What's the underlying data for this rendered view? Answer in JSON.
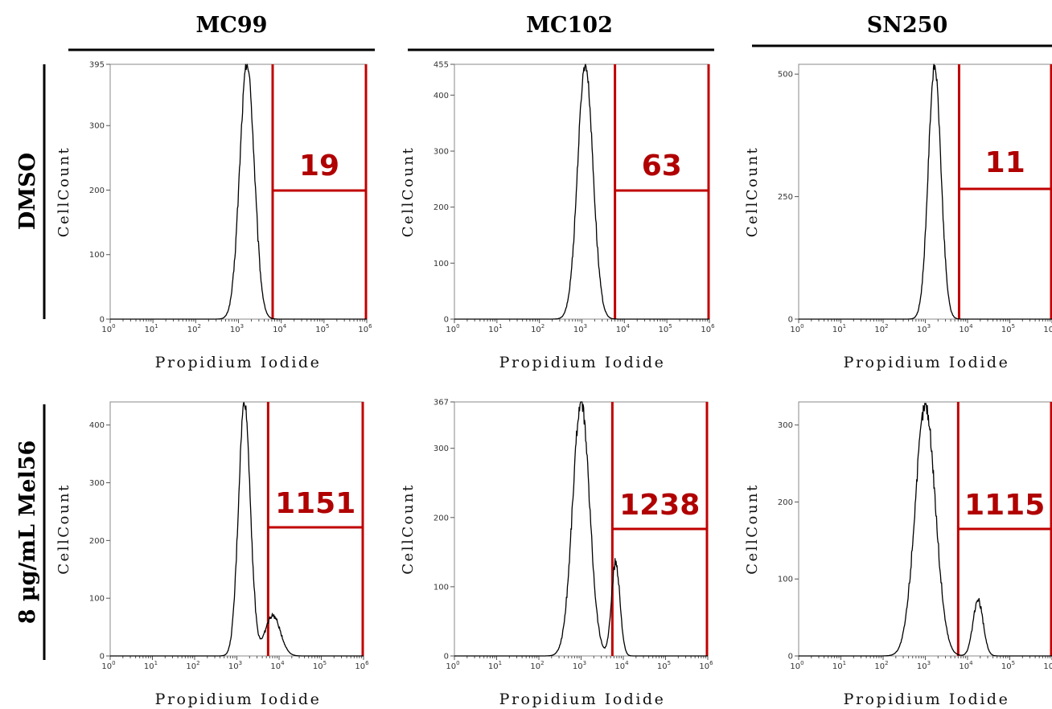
{
  "figure": {
    "columns": [
      "MC99",
      "MC102",
      "SN250"
    ],
    "rows": [
      "DMSO",
      "8 µg/mL Mel56"
    ]
  },
  "colors": {
    "gate": "#c00000",
    "curve": "#000000"
  },
  "chart_data": [
    {
      "type": "line",
      "column": "MC99",
      "row": "DMSO",
      "xlabel": "Propidium Iodide",
      "ylabel": "CellCount",
      "x_scale": "log",
      "xlim": [
        1,
        1000000
      ],
      "ylim": [
        0,
        395
      ],
      "yticks": [
        0,
        100,
        200,
        300,
        395
      ],
      "gate": {
        "x_start": 6300,
        "x_end": 1000000,
        "label": "19"
      },
      "peaks": [
        {
          "x_log10": 3.2,
          "height": 395,
          "sigma": 0.17
        }
      ],
      "x_log10": [
        1.5,
        2.0,
        2.3,
        2.5,
        2.7,
        2.85,
        2.95,
        3.05,
        3.15,
        3.2,
        3.25,
        3.35,
        3.45,
        3.55,
        3.65,
        3.75,
        3.9,
        4.1
      ],
      "y": [
        0,
        2,
        6,
        18,
        60,
        140,
        230,
        320,
        375,
        395,
        380,
        300,
        200,
        110,
        45,
        15,
        4,
        0
      ]
    },
    {
      "type": "line",
      "column": "MC102",
      "row": "DMSO",
      "xlabel": "Propidium Iodide",
      "ylabel": "CellCount",
      "x_scale": "log",
      "xlim": [
        1,
        1000000
      ],
      "ylim": [
        0,
        455
      ],
      "yticks": [
        0,
        100,
        200,
        300,
        400,
        455
      ],
      "gate": {
        "x_start": 6000,
        "x_end": 1000000,
        "label": "63"
      },
      "peaks": [
        {
          "x_log10": 3.08,
          "height": 455,
          "sigma": 0.18
        }
      ],
      "x_log10": [
        1.5,
        2.0,
        2.3,
        2.55,
        2.75,
        2.9,
        3.0,
        3.08,
        3.15,
        3.25,
        3.35,
        3.45,
        3.55,
        3.65,
        3.75,
        3.9,
        4.1
      ],
      "y": [
        0,
        2,
        8,
        30,
        100,
        250,
        400,
        455,
        430,
        330,
        200,
        100,
        40,
        15,
        6,
        2,
        0
      ]
    },
    {
      "type": "line",
      "column": "SN250",
      "row": "DMSO",
      "xlabel": "Propidium Iodide",
      "ylabel": "CellCount",
      "x_scale": "log",
      "xlim": [
        1,
        1000000
      ],
      "ylim": [
        0,
        520
      ],
      "yticks": [
        0,
        250,
        500
      ],
      "gate": {
        "x_start": 6300,
        "x_end": 1000000,
        "label": "11"
      },
      "peaks": [
        {
          "x_log10": 3.22,
          "height": 515,
          "sigma": 0.15
        }
      ],
      "x_log10": [
        1.8,
        2.3,
        2.6,
        2.8,
        2.95,
        3.05,
        3.15,
        3.22,
        3.3,
        3.4,
        3.5,
        3.6,
        3.7,
        3.85,
        4.0
      ],
      "y": [
        0,
        5,
        20,
        60,
        160,
        330,
        470,
        515,
        460,
        280,
        120,
        40,
        12,
        3,
        0
      ]
    },
    {
      "type": "line",
      "column": "MC99",
      "row": "8 µg/mL Mel56",
      "xlabel": "Propidium Iodide",
      "ylabel": "CellCount",
      "x_scale": "log",
      "xlim": [
        1,
        1000000
      ],
      "ylim": [
        0,
        440
      ],
      "yticks": [
        0,
        100,
        200,
        300,
        400
      ],
      "gate": {
        "x_start": 5500,
        "x_end": 1000000,
        "label": "1151"
      },
      "peaks": [
        {
          "x_log10": 3.18,
          "height": 440,
          "sigma": 0.14
        },
        {
          "x_log10": 3.85,
          "height": 70,
          "sigma": 0.18
        }
      ],
      "x_log10": [
        1.8,
        2.3,
        2.6,
        2.8,
        2.95,
        3.05,
        3.12,
        3.18,
        3.25,
        3.35,
        3.45,
        3.55,
        3.65,
        3.75,
        3.85,
        3.95,
        4.1,
        4.25,
        4.4
      ],
      "y": [
        0,
        8,
        30,
        90,
        200,
        330,
        400,
        440,
        390,
        250,
        120,
        70,
        65,
        68,
        72,
        55,
        25,
        8,
        0
      ]
    },
    {
      "type": "line",
      "column": "MC102",
      "row": "8 µg/mL Mel56",
      "xlabel": "Propidium Iodide",
      "ylabel": "CellCount",
      "x_scale": "log",
      "xlim": [
        1,
        1000000
      ],
      "ylim": [
        0,
        367
      ],
      "yticks": [
        0,
        100,
        200,
        300,
        367
      ],
      "gate": {
        "x_start": 5500,
        "x_end": 1000000,
        "label": "1238"
      },
      "peaks": [
        {
          "x_log10": 3.0,
          "height": 367,
          "sigma": 0.2
        },
        {
          "x_log10": 3.82,
          "height": 135,
          "sigma": 0.1
        }
      ],
      "x_log10": [
        1.8,
        2.3,
        2.55,
        2.75,
        2.9,
        3.0,
        3.1,
        3.2,
        3.3,
        3.4,
        3.5,
        3.6,
        3.7,
        3.76,
        3.82,
        3.9,
        4.0,
        4.1,
        4.2
      ],
      "y": [
        0,
        10,
        40,
        130,
        280,
        367,
        310,
        230,
        170,
        140,
        110,
        90,
        60,
        90,
        135,
        110,
        50,
        15,
        0
      ]
    },
    {
      "type": "line",
      "column": "SN250",
      "row": "8 µg/mL Mel56",
      "xlabel": "Propidium Iodide",
      "ylabel": "CellCount",
      "x_scale": "log",
      "xlim": [
        1,
        1000000
      ],
      "ylim": [
        0,
        330
      ],
      "yticks": [
        0,
        100,
        200,
        300
      ],
      "gate": {
        "x_start": 6000,
        "x_end": 1000000,
        "label": "1115"
      },
      "peaks": [
        {
          "x_log10": 3.0,
          "height": 325,
          "sigma": 0.24
        },
        {
          "x_log10": 4.25,
          "height": 72,
          "sigma": 0.12
        }
      ],
      "x_log10": [
        1.8,
        2.3,
        2.55,
        2.75,
        2.9,
        3.0,
        3.1,
        3.2,
        3.3,
        3.45,
        3.6,
        3.7,
        3.78,
        3.9,
        4.05,
        4.2,
        4.25,
        4.35,
        4.5,
        4.65
      ],
      "y": [
        0,
        15,
        60,
        170,
        290,
        325,
        300,
        260,
        200,
        120,
        40,
        15,
        8,
        20,
        50,
        70,
        72,
        50,
        15,
        0
      ]
    }
  ]
}
